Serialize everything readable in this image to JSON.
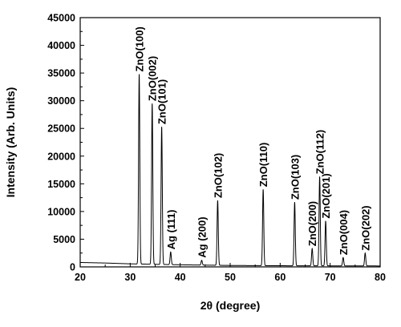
{
  "chart_data": {
    "type": "line",
    "xlabel": "2θ (degree)",
    "ylabel": "Intensity (Arb. Units)",
    "xlim": [
      20,
      80
    ],
    "ylim": [
      0,
      45000
    ],
    "x_ticks": [
      20,
      30,
      40,
      50,
      60,
      70,
      80
    ],
    "y_ticks": [
      0,
      5000,
      10000,
      15000,
      20000,
      25000,
      30000,
      35000,
      40000,
      45000
    ],
    "x_tick_labels": [
      "20",
      "30",
      "40",
      "50",
      "60",
      "70",
      "80"
    ],
    "y_tick_labels": [
      "0",
      "5000",
      "10000",
      "15000",
      "20000",
      "25000",
      "30000",
      "35000",
      "40000",
      "45000"
    ],
    "grid": false,
    "series_color": "#000000",
    "baseline": [
      [
        20,
        800
      ],
      [
        25,
        700
      ],
      [
        30,
        550
      ],
      [
        40,
        380
      ],
      [
        50,
        260
      ],
      [
        60,
        210
      ],
      [
        70,
        190
      ],
      [
        80,
        170
      ]
    ],
    "peaks": [
      {
        "label": "ZnO(100)",
        "x": 31.8,
        "y": 34800
      },
      {
        "label": "ZnO(002)",
        "x": 34.4,
        "y": 29500
      },
      {
        "label": "ZnO(101)",
        "x": 36.3,
        "y": 25300
      },
      {
        "label": "Ag (111)",
        "x": 38.1,
        "y": 2700
      },
      {
        "label": "Ag (200)",
        "x": 44.3,
        "y": 1200
      },
      {
        "label": "ZnO(102)",
        "x": 47.5,
        "y": 12000
      },
      {
        "label": "ZnO(110)",
        "x": 56.6,
        "y": 14000
      },
      {
        "label": "ZnO(103)",
        "x": 62.9,
        "y": 11700
      },
      {
        "label": "ZnO(200)",
        "x": 66.4,
        "y": 3300
      },
      {
        "label": "ZnO(112)",
        "x": 67.9,
        "y": 16300
      },
      {
        "label": "ZnO(201)",
        "x": 69.1,
        "y": 8300
      },
      {
        "label": "ZnO(004)",
        "x": 72.6,
        "y": 1700
      },
      {
        "label": "ZnO(202)",
        "x": 77.0,
        "y": 2500
      }
    ]
  }
}
